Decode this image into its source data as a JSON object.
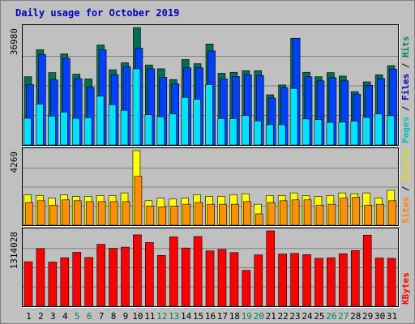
{
  "chart_data": {
    "title": "Daily usage for October 2019",
    "type": "bar",
    "categories": [
      "1",
      "2",
      "3",
      "4",
      "5",
      "6",
      "7",
      "8",
      "9",
      "10",
      "11",
      "12",
      "13",
      "14",
      "15",
      "16",
      "17",
      "18",
      "19",
      "20",
      "21",
      "22",
      "23",
      "24",
      "25",
      "26",
      "27",
      "28",
      "29",
      "30",
      "31"
    ],
    "weekend_days": [
      "5",
      "6",
      "12",
      "13",
      "19",
      "20",
      "26",
      "27"
    ],
    "panels": [
      {
        "id": "hits",
        "ymax_label": "36980",
        "ymax": 36980,
        "side_labels": [
          {
            "text": "Pages",
            "color": "#00c0c0"
          },
          {
            "text": " / ",
            "color": "#000000"
          },
          {
            "text": "Files",
            "color": "#0000c0"
          },
          {
            "text": " / ",
            "color": "#000000"
          },
          {
            "text": "Hits",
            "color": "#008060"
          }
        ],
        "series": [
          {
            "name": "Hits",
            "color": "#007050",
            "values": [
              21500,
              30000,
              22800,
              28700,
              22300,
              20800,
              31500,
              23700,
              25900,
              36980,
              25200,
              24000,
              20600,
              26900,
              25600,
              31800,
              22600,
              22900,
              23400,
              23400,
              15800,
              18900,
              33600,
              22900,
              21500,
              22800,
              21700,
              16800,
              19900,
              22100,
              25000
            ]
          },
          {
            "name": "Files",
            "color": "#0040ff",
            "values": [
              19000,
              28500,
              20500,
              27300,
              20900,
              18200,
              30000,
              22200,
              24700,
              30500,
              24000,
              21300,
              19300,
              24300,
              24300,
              29600,
              20800,
              21600,
              22100,
              21900,
              14800,
              18100,
              33600,
              21500,
              20200,
              21200,
              20200,
              16000,
              18800,
              20900,
              23900
            ]
          },
          {
            "name": "Pages",
            "color": "#00e0ff",
            "values": [
              8400,
              12900,
              9100,
              10400,
              8400,
              8600,
              15400,
              12700,
              10900,
              24000,
              9500,
              8900,
              9800,
              15000,
              14400,
              19000,
              8300,
              8300,
              9300,
              7600,
              6400,
              6400,
              17800,
              8200,
              8000,
              7100,
              7200,
              7500,
              8700,
              9800,
              9200
            ]
          }
        ]
      },
      {
        "id": "visits",
        "ymax_label": "4269",
        "ymax": 4269,
        "side_labels": [
          {
            "text": "Sites",
            "color": "#ff8000"
          },
          {
            "text": " / ",
            "color": "#000000"
          },
          {
            "text": "Visits",
            "color": "#e0e000"
          }
        ],
        "series": [
          {
            "name": "Visits",
            "color": "#ffff00",
            "values": [
              1750,
              1700,
              1550,
              1750,
              1650,
              1650,
              1700,
              1700,
              1850,
              4269,
              1400,
              1550,
              1500,
              1550,
              1750,
              1650,
              1650,
              1750,
              1800,
              1200,
              1700,
              1700,
              1850,
              1700,
              1650,
              1700,
              1850,
              1800,
              1850,
              1550,
              2000
            ]
          },
          {
            "name": "Sites",
            "color": "#ff9000",
            "values": [
              1300,
              1400,
              1150,
              1450,
              1400,
              1350,
              1350,
              1350,
              1350,
              2800,
              1100,
              1050,
              1100,
              1200,
              1300,
              1200,
              1200,
              1200,
              1350,
              650,
              1300,
              1400,
              1450,
              1450,
              1150,
              1200,
              1550,
              1600,
              1150,
              1200,
              1400
            ]
          }
        ]
      },
      {
        "id": "kbytes",
        "ymax_label": "1314028",
        "ymax": 1314028,
        "side_labels": [
          {
            "text": "KBytes",
            "color": "#ff0000"
          }
        ],
        "series": [
          {
            "name": "KBytes",
            "color": "#ff0000",
            "values": [
              775000,
              1005000,
              770000,
              845000,
              940000,
              850000,
              1080000,
              1010000,
              1030000,
              1245000,
              1110000,
              885000,
              1210000,
              1015000,
              1215000,
              965000,
              990000,
              935000,
              625000,
              895000,
              1314028,
              910000,
              920000,
              900000,
              835000,
              845000,
              915000,
              970000,
              1240000,
              840000,
              835000
            ]
          }
        ]
      }
    ]
  }
}
